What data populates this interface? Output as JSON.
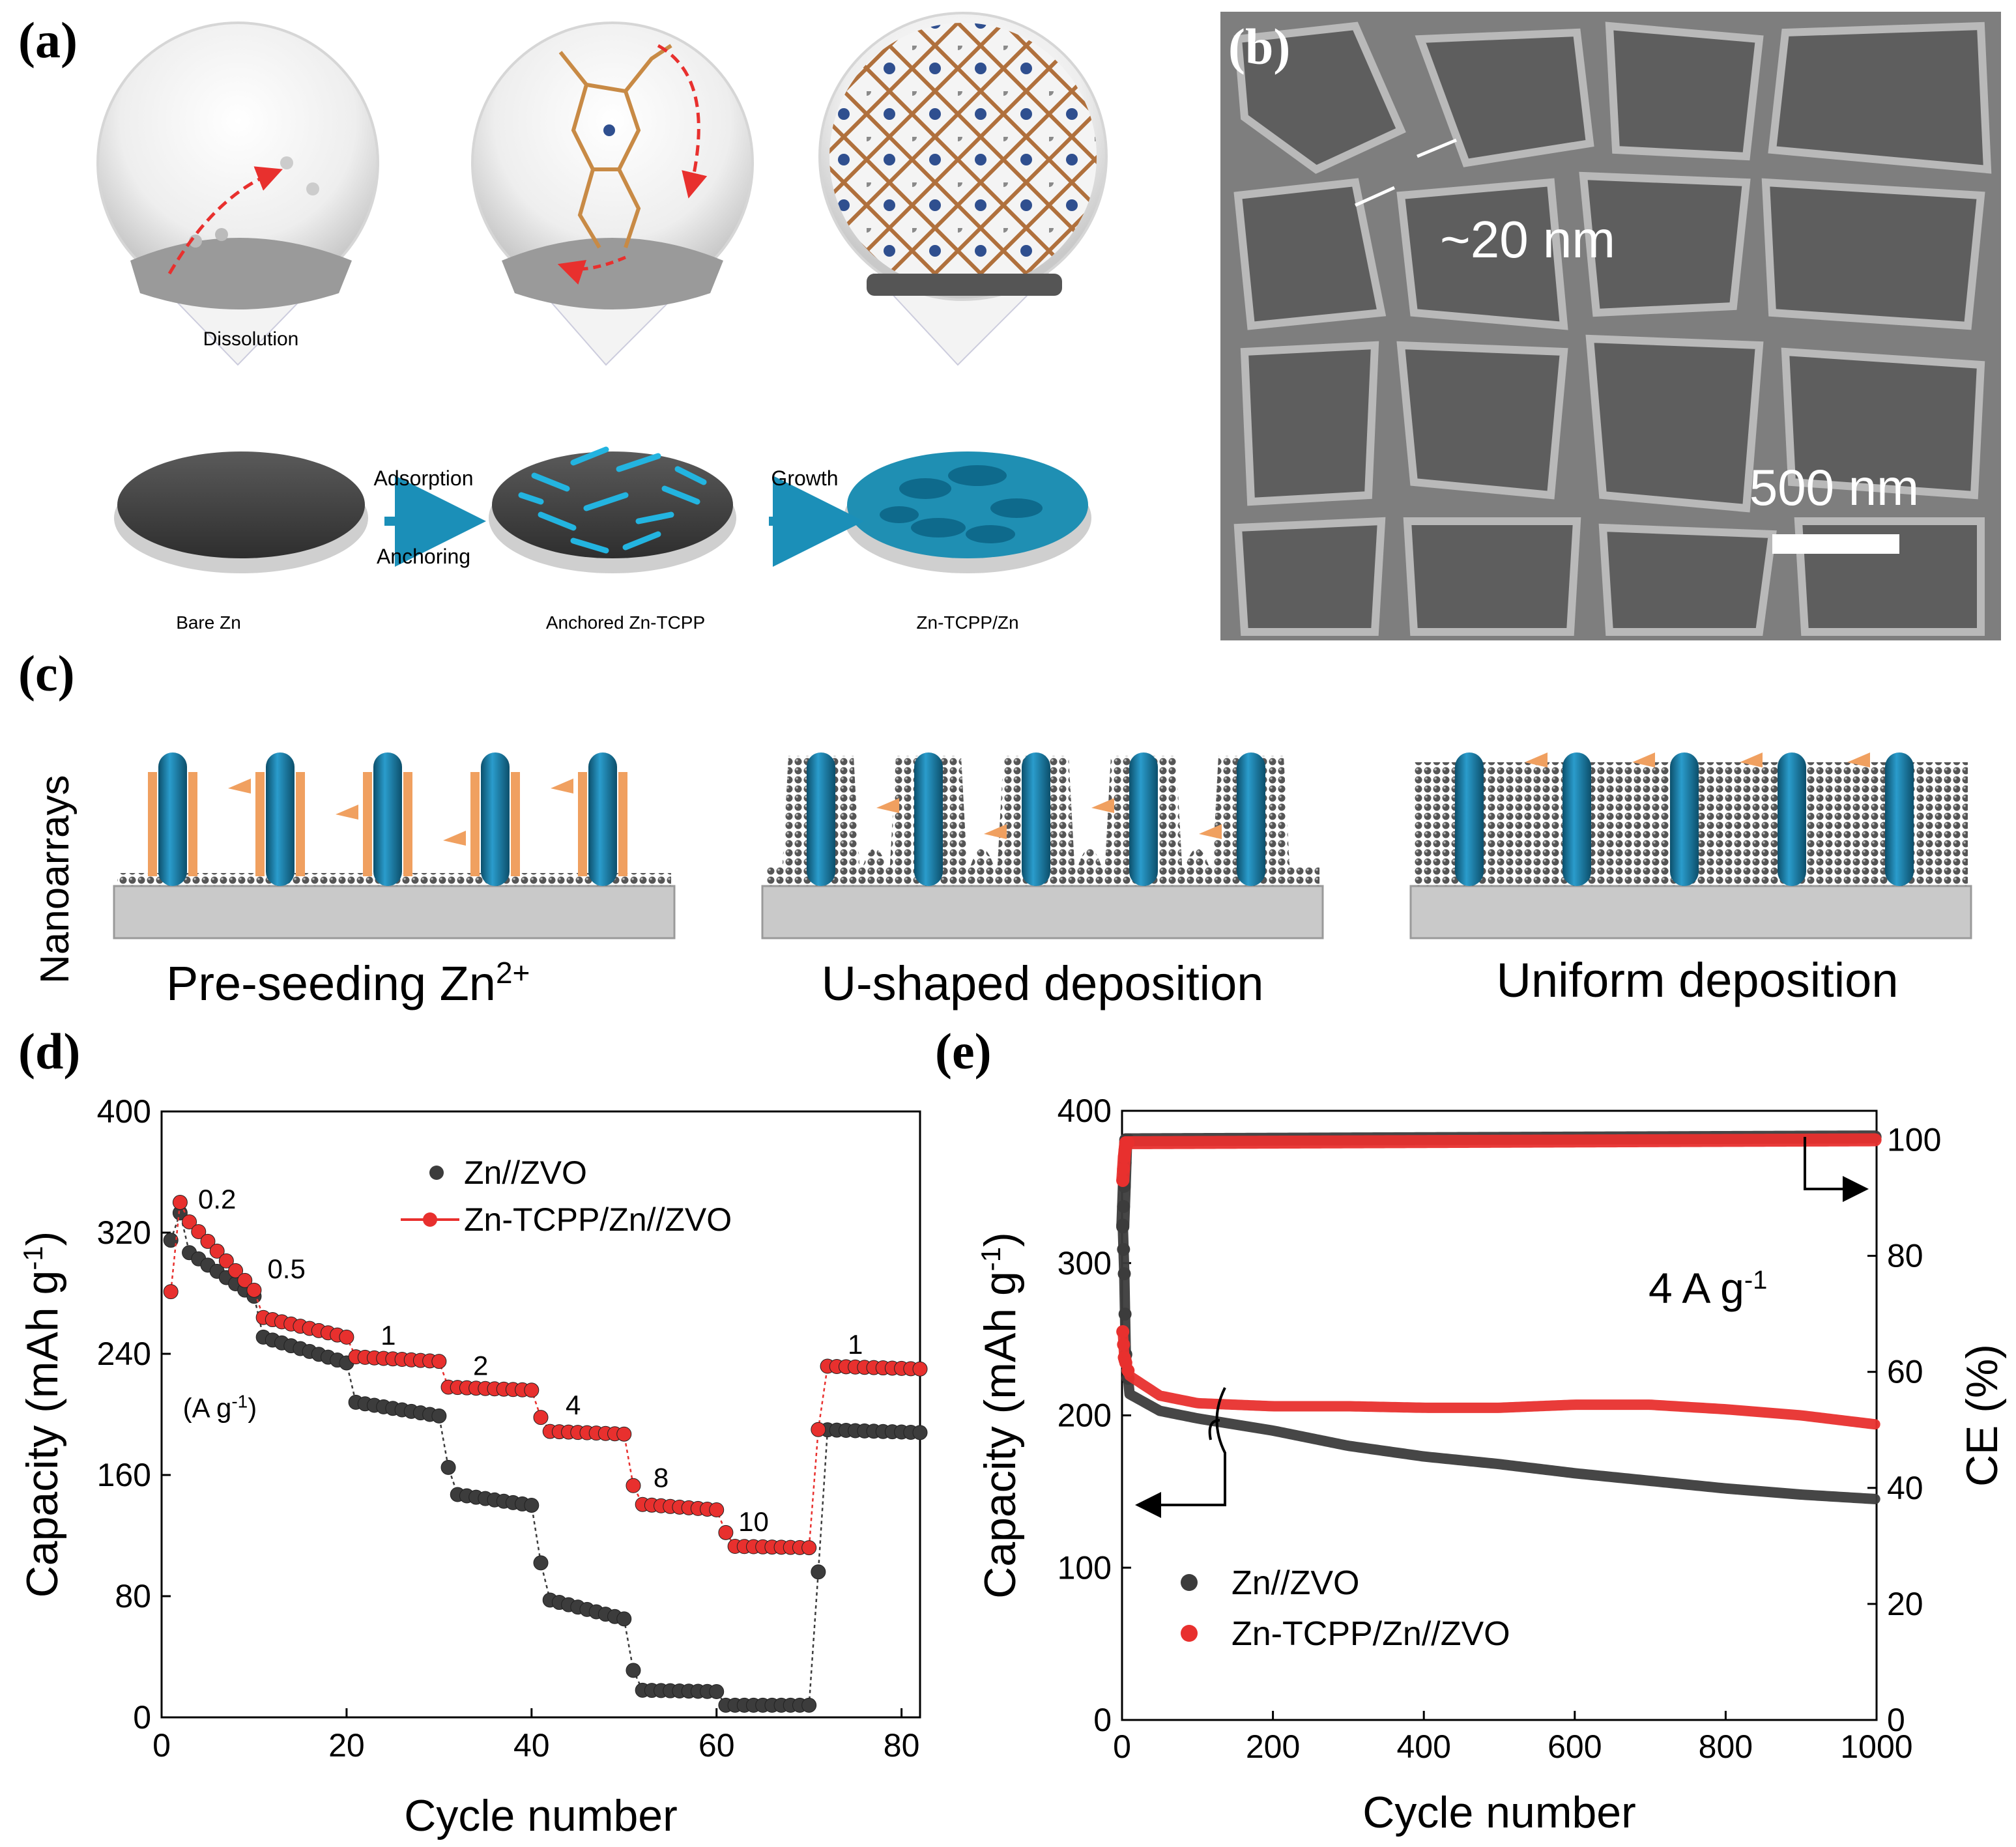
{
  "panels": {
    "a": {
      "label": "(a)",
      "captions": [
        "Dissolution",
        "Bare Zn",
        "Anchored Zn-TCPP",
        "Zn-TCPP/Zn"
      ],
      "arrow1": {
        "top": "Adsorption",
        "bottom": "Anchoring"
      },
      "arrow2": {
        "top": "Growth"
      }
    },
    "b": {
      "label": "(b)",
      "measure": "~20 nm",
      "scale_bar": "500 nm"
    },
    "c": {
      "label": "(c)",
      "side_label": "Nanoarrays",
      "stage_labels": [
        "Pre-seeding Zn",
        "U-shaped deposition",
        "Uniform deposition"
      ],
      "stage1_sup": "2+"
    },
    "d": {
      "label": "(d)"
    },
    "e": {
      "label": "(e)"
    }
  },
  "colors": {
    "red": "#e8302e",
    "dark": "#3c3c3c",
    "teal": "#1a7fa3",
    "orange": "#f0a060",
    "sem": "#7e7e7e"
  },
  "chart_data": [
    {
      "id": "d",
      "type": "scatter",
      "xlabel": "Cycle number",
      "ylabel": "Capacity (mAh g",
      "ylabel_sup": "-1",
      "ylabel_end": ")",
      "xlim": [
        0,
        82
      ],
      "ylim": [
        0,
        400
      ],
      "xticks": [
        0,
        20,
        40,
        60,
        80
      ],
      "yticks": [
        0,
        80,
        160,
        240,
        320,
        400
      ],
      "rate_unit": "(A g",
      "rate_unit_sup": "-1",
      "rate_unit_end": ")",
      "annotations": [
        {
          "text": "0.2",
          "x": 6,
          "y": 336
        },
        {
          "text": "0.5",
          "x": 13.5,
          "y": 290
        },
        {
          "text": "1",
          "x": 24.5,
          "y": 246
        },
        {
          "text": "2",
          "x": 34.5,
          "y": 226
        },
        {
          "text": "4",
          "x": 44.5,
          "y": 200
        },
        {
          "text": "8",
          "x": 54,
          "y": 152
        },
        {
          "text": "10",
          "x": 64,
          "y": 123
        },
        {
          "text": "1",
          "x": 75,
          "y": 240
        }
      ],
      "series": [
        {
          "name": "Zn//ZVO",
          "color": "#3c3c3c",
          "segments": [
            {
              "x0": 1,
              "x1": 10,
              "start": 315,
              "end": 278,
              "first": 315,
              "second": 333
            },
            {
              "x0": 11,
              "x1": 20,
              "start": 251,
              "end": 234
            },
            {
              "x0": 21,
              "x1": 30,
              "start": 208,
              "end": 199,
              "first": 208
            },
            {
              "x0": 31,
              "x1": 40,
              "start": 148,
              "end": 140,
              "first": 165
            },
            {
              "x0": 41,
              "x1": 50,
              "start": 79,
              "end": 65,
              "first": 102
            },
            {
              "x0": 51,
              "x1": 60,
              "start": 18,
              "end": 17,
              "first": 31
            },
            {
              "x0": 61,
              "x1": 70,
              "start": 8,
              "end": 8
            },
            {
              "x0": 71,
              "x1": 82,
              "start": 190,
              "end": 188,
              "first": 96
            }
          ]
        },
        {
          "name": "Zn-TCPP/Zn//ZVO",
          "color": "#e8302e",
          "segments": [
            {
              "x0": 1,
              "x1": 10,
              "start": 340,
              "end": 282,
              "first": 281,
              "second": 340
            },
            {
              "x0": 11,
              "x1": 20,
              "start": 264,
              "end": 251
            },
            {
              "x0": 21,
              "x1": 30,
              "start": 238,
              "end": 235
            },
            {
              "x0": 31,
              "x1": 40,
              "start": 218,
              "end": 216
            },
            {
              "x0": 41,
              "x1": 50,
              "start": 189,
              "end": 187,
              "first": 198
            },
            {
              "x0": 51,
              "x1": 60,
              "start": 141,
              "end": 137,
              "first": 153
            },
            {
              "x0": 61,
              "x1": 70,
              "start": 113,
              "end": 112,
              "first": 122
            },
            {
              "x0": 71,
              "x1": 82,
              "start": 232,
              "end": 230,
              "first": 190
            }
          ]
        }
      ]
    },
    {
      "id": "e",
      "type": "scatter",
      "xlabel": "Cycle number",
      "ylabel": "Capacity (mAh g",
      "ylabel_sup": "-1",
      "ylabel_end": ")",
      "y2label": "CE (%)",
      "xlim": [
        0,
        1000
      ],
      "ylim": [
        0,
        400
      ],
      "y2lim": [
        0,
        105
      ],
      "xticks": [
        0,
        200,
        400,
        600,
        800,
        1000
      ],
      "yticks": [
        0,
        100,
        200,
        300,
        400
      ],
      "y2ticks": [
        0,
        20,
        40,
        60,
        80,
        100
      ],
      "rate_text": "4 A g",
      "rate_sup": "-1",
      "series": [
        {
          "name": "Zn//ZVO",
          "color": "#3c3c3c",
          "axis": "capacity",
          "points": [
            [
              1,
              325
            ],
            [
              3,
              293
            ],
            [
              5,
              240
            ],
            [
              10,
              214
            ],
            [
              50,
              203
            ],
            [
              100,
              198
            ],
            [
              200,
              190
            ],
            [
              300,
              180
            ],
            [
              400,
              173
            ],
            [
              500,
              168
            ],
            [
              600,
              162
            ],
            [
              700,
              157
            ],
            [
              800,
              152
            ],
            [
              900,
              148
            ],
            [
              1000,
              145
            ]
          ]
        },
        {
          "name": "Zn-TCPP/Zn//ZVO",
          "color": "#e8302e",
          "axis": "capacity",
          "points": [
            [
              1,
              255
            ],
            [
              3,
              238
            ],
            [
              10,
              226
            ],
            [
              50,
              213
            ],
            [
              100,
              208
            ],
            [
              200,
              206
            ],
            [
              300,
              206
            ],
            [
              400,
              205
            ],
            [
              500,
              205
            ],
            [
              600,
              207
            ],
            [
              700,
              207
            ],
            [
              800,
              204
            ],
            [
              900,
              200
            ],
            [
              1000,
              194
            ]
          ]
        },
        {
          "name": "Zn//ZVO CE",
          "color": "#3c3c3c",
          "axis": "ce",
          "points": [
            [
              1,
              85
            ],
            [
              3,
              92
            ],
            [
              5,
              100
            ],
            [
              1000,
              100.5
            ]
          ]
        },
        {
          "name": "Zn-TCPP/Zn//ZVO CE",
          "color": "#e8302e",
          "axis": "ce",
          "points": [
            [
              1,
              93
            ],
            [
              3,
              97
            ],
            [
              5,
              99.5
            ],
            [
              1000,
              100
            ]
          ]
        }
      ]
    }
  ]
}
